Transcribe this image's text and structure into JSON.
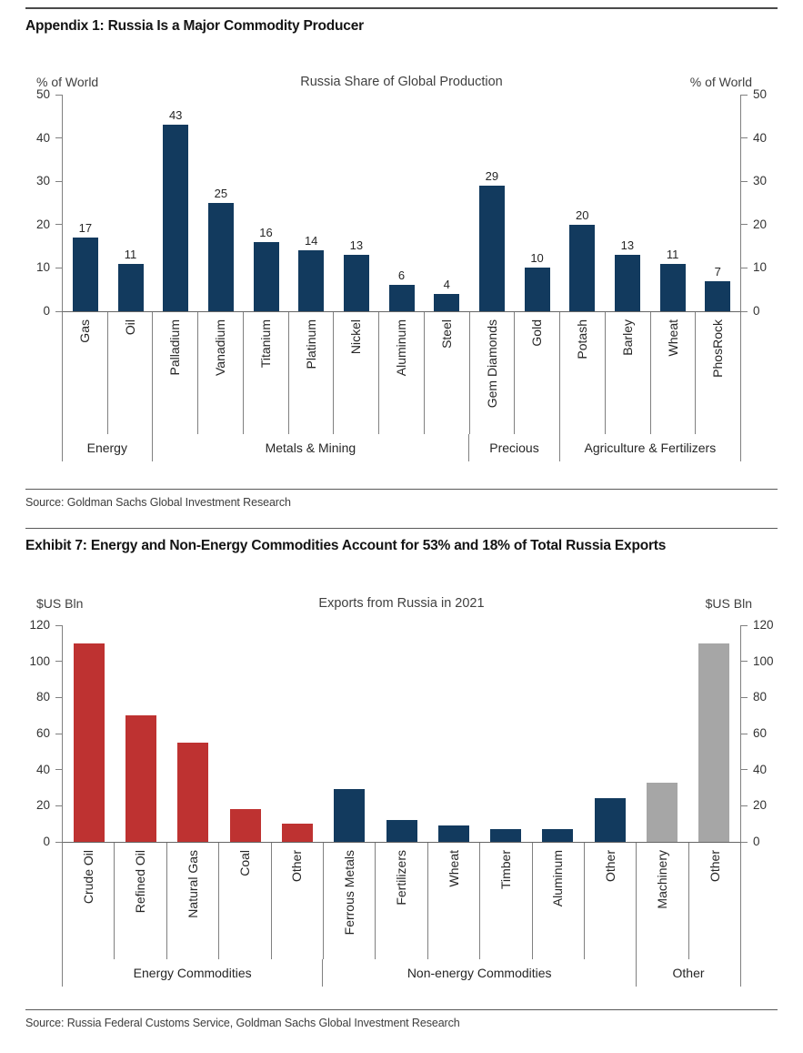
{
  "sections": [
    {
      "title": "Appendix 1: Russia Is a Major Commodity Producer",
      "source": "Source: Goldman Sachs Global Investment Research"
    },
    {
      "title": "Exhibit 7: Energy and Non-Energy Commodities Account for 53% and 18% of Total Russia Exports",
      "source": "Source: Russia Federal Customs Service, Goldman Sachs Global Investment Research"
    }
  ],
  "chart_data": [
    {
      "type": "bar",
      "title": "Russia Share of Global Production",
      "ylabel_left": "% of World",
      "ylabel_right": "% of World",
      "ylim": [
        0,
        50
      ],
      "ytick_step": 10,
      "grid": false,
      "value_labels": true,
      "legend": "none",
      "groups": [
        {
          "label": "Energy",
          "color": "#123A5E",
          "categories": [
            "Gas",
            "Oil"
          ],
          "values": [
            17,
            11
          ]
        },
        {
          "label": "Metals & Mining",
          "color": "#123A5E",
          "categories": [
            "Palladium",
            "Vanadium",
            "Titanium",
            "Platinum",
            "Nickel",
            "Aluminum",
            "Steel"
          ],
          "values": [
            43,
            25,
            16,
            14,
            13,
            6,
            4
          ]
        },
        {
          "label": "Precious",
          "color": "#123A5E",
          "categories": [
            "Gem Diamonds",
            "Gold"
          ],
          "values": [
            29,
            10
          ]
        },
        {
          "label": "Agriculture & Fertilizers",
          "color": "#123A5E",
          "categories": [
            "Potash",
            "Barley",
            "Wheat",
            "PhosRock"
          ],
          "values": [
            20,
            13,
            11,
            7
          ]
        }
      ]
    },
    {
      "type": "bar",
      "title": "Exports from Russia in 2021",
      "ylabel_left": "$US Bln",
      "ylabel_right": "$US Bln",
      "ylim": [
        0,
        120
      ],
      "ytick_step": 20,
      "grid": false,
      "value_labels": false,
      "legend": "none",
      "groups": [
        {
          "label": "Energy Commodities",
          "color": "#BE3231",
          "categories": [
            "Crude Oil",
            "Refined Oil",
            "Natural Gas",
            "Coal",
            "Other"
          ],
          "values": [
            110,
            70,
            55,
            18,
            10
          ]
        },
        {
          "label": "Non-energy Commodities",
          "color": "#123A5E",
          "categories": [
            "Ferrous Metals",
            "Fertilizers",
            "Wheat",
            "Timber",
            "Aluminum",
            "Other"
          ],
          "values": [
            29,
            12,
            9,
            7,
            7,
            24
          ]
        },
        {
          "label": "Other",
          "color": "#A6A6A6",
          "categories": [
            "Machinery",
            "Other"
          ],
          "values": [
            33,
            110
          ]
        }
      ]
    }
  ]
}
